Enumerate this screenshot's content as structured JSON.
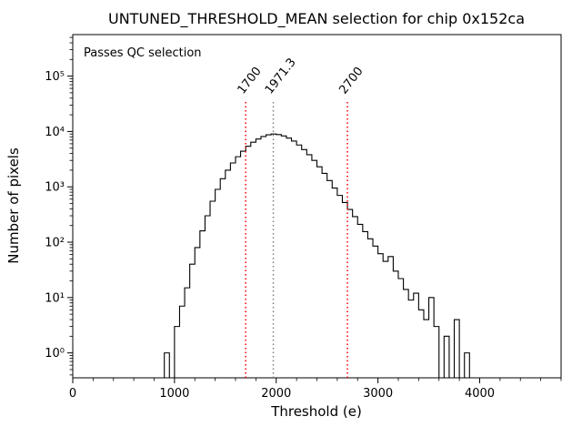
{
  "chart": {
    "title": "UNTUNED_THRESHOLD_MEAN selection for chip 0x152ca",
    "xlabel": "Threshold (e)",
    "ylabel": "Number of pixels",
    "annotation": "Passes QC selection",
    "annotation_color": "#008000",
    "line_color": "#000000",
    "xlim": [
      0,
      4800
    ],
    "ylog_range": [
      -0.45,
      5.75
    ],
    "xticks": [
      0,
      1000,
      2000,
      3000,
      4000
    ],
    "x_minor_step": 200,
    "ytick_exponents": [
      0,
      1,
      2,
      3,
      4,
      5
    ],
    "vlines": [
      {
        "x": 1700,
        "label": "1700",
        "color": "#ff0000",
        "style": "dotted"
      },
      {
        "x": 1971.3,
        "label": "1971.3",
        "color": "#7f7f7f",
        "style": "dotted"
      },
      {
        "x": 2700,
        "label": "2700",
        "color": "#ff0000",
        "style": "dotted"
      }
    ]
  },
  "chart_data": {
    "type": "bar",
    "subtype": "step-histogram",
    "title": "UNTUNED_THRESHOLD_MEAN selection for chip 0x152ca",
    "xlabel": "Threshold (e)",
    "ylabel": "Number of pixels",
    "yscale": "log",
    "xlim": [
      0,
      4800
    ],
    "ylim_log10": [
      -0.45,
      5.75
    ],
    "grid": false,
    "legend": "none",
    "bin_start": 900,
    "bin_width": 50,
    "counts": [
      1,
      0,
      3,
      7,
      15,
      40,
      80,
      160,
      300,
      550,
      900,
      1400,
      2000,
      2700,
      3500,
      4400,
      5400,
      6400,
      7300,
      8100,
      8700,
      9000,
      8800,
      8300,
      7600,
      6700,
      5700,
      4700,
      3800,
      3000,
      2300,
      1750,
      1300,
      950,
      700,
      520,
      390,
      290,
      210,
      155,
      115,
      85,
      62,
      45,
      55,
      30,
      22,
      14,
      9,
      12,
      6,
      4,
      10,
      3,
      0,
      2,
      0,
      4,
      0,
      1
    ],
    "vlines": [
      {
        "x": 1700,
        "label": "1700",
        "color": "#ff0000"
      },
      {
        "x": 1971.3,
        "label": "1971.3",
        "color": "#7f7f7f"
      },
      {
        "x": 2700,
        "label": "2700",
        "color": "#ff0000"
      }
    ],
    "annotations": [
      {
        "text": "Passes QC selection",
        "color": "#008000",
        "position": "top-left"
      }
    ]
  }
}
